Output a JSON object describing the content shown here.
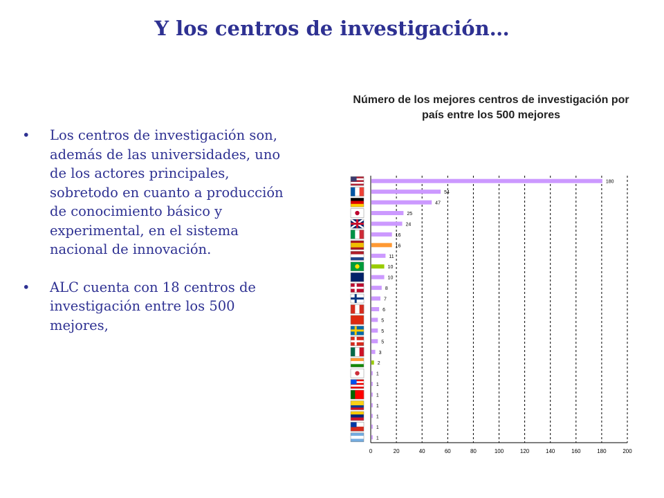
{
  "slide": {
    "title": "Y los centros de investigación…",
    "bullets": [
      "Los centros de investigación son, además de las universidades, uno de los actores principales, sobretodo en cuanto a producción de conocimiento básico y experimental, en el sistema nacional de innovación.",
      "ALC cuenta con 18 centros de investigación entre los 500 mejores,"
    ]
  },
  "chart_data": {
    "type": "bar",
    "orientation": "horizontal",
    "title": "Número de los mejores centros de investigación por país entre los 500 mejores",
    "categories_icons": [
      "usa-flag-icon",
      "france-flag-icon",
      "germany-flag-icon",
      "japan-flag-icon",
      "uk-flag-icon",
      "italy-flag-icon",
      "spain-flag-icon",
      "netherlands-flag-icon",
      "brazil-flag-icon",
      "australia-flag-icon",
      "norway-flag-icon",
      "finland-flag-icon",
      "canada-flag-icon",
      "china-flag-icon",
      "sweden-flag-icon",
      "switzerland-flag-icon",
      "mexico-flag-icon",
      "india-flag-icon",
      "south-korea-flag-icon",
      "puerto-rico-flag-icon",
      "portugal-flag-icon",
      "colombia-flag-icon",
      "venezuela-flag-icon",
      "chile-flag-icon",
      "argentina-flag-icon"
    ],
    "values": [
      180,
      54,
      47,
      25,
      24,
      16,
      16,
      11,
      10,
      10,
      8,
      7,
      6,
      5,
      5,
      5,
      3,
      2,
      1,
      1,
      1,
      1,
      1,
      1,
      1
    ],
    "bar_colors": [
      "#cc99ff",
      "#cc99ff",
      "#cc99ff",
      "#cc99ff",
      "#cc99ff",
      "#cc99ff",
      "#ff9933",
      "#cc99ff",
      "#99cc00",
      "#cc99ff",
      "#cc99ff",
      "#cc99ff",
      "#cc99ff",
      "#cc99ff",
      "#cc99ff",
      "#cc99ff",
      "#cc99ff",
      "#99cc00",
      "#cc99ff",
      "#cc99ff",
      "#cc99ff",
      "#cc99ff",
      "#cc99ff",
      "#cc99ff",
      "#cc99ff"
    ],
    "xlim": [
      0,
      200
    ],
    "xticks": [
      0,
      20,
      40,
      60,
      80,
      100,
      120,
      140,
      160,
      180,
      200
    ],
    "gridlines": "vertical-dashed",
    "colors": {
      "title": "#2e3192",
      "bar_default": "#cc99ff",
      "bar_highlight_orange": "#ff9933",
      "bar_highlight_green": "#99cc00"
    }
  }
}
